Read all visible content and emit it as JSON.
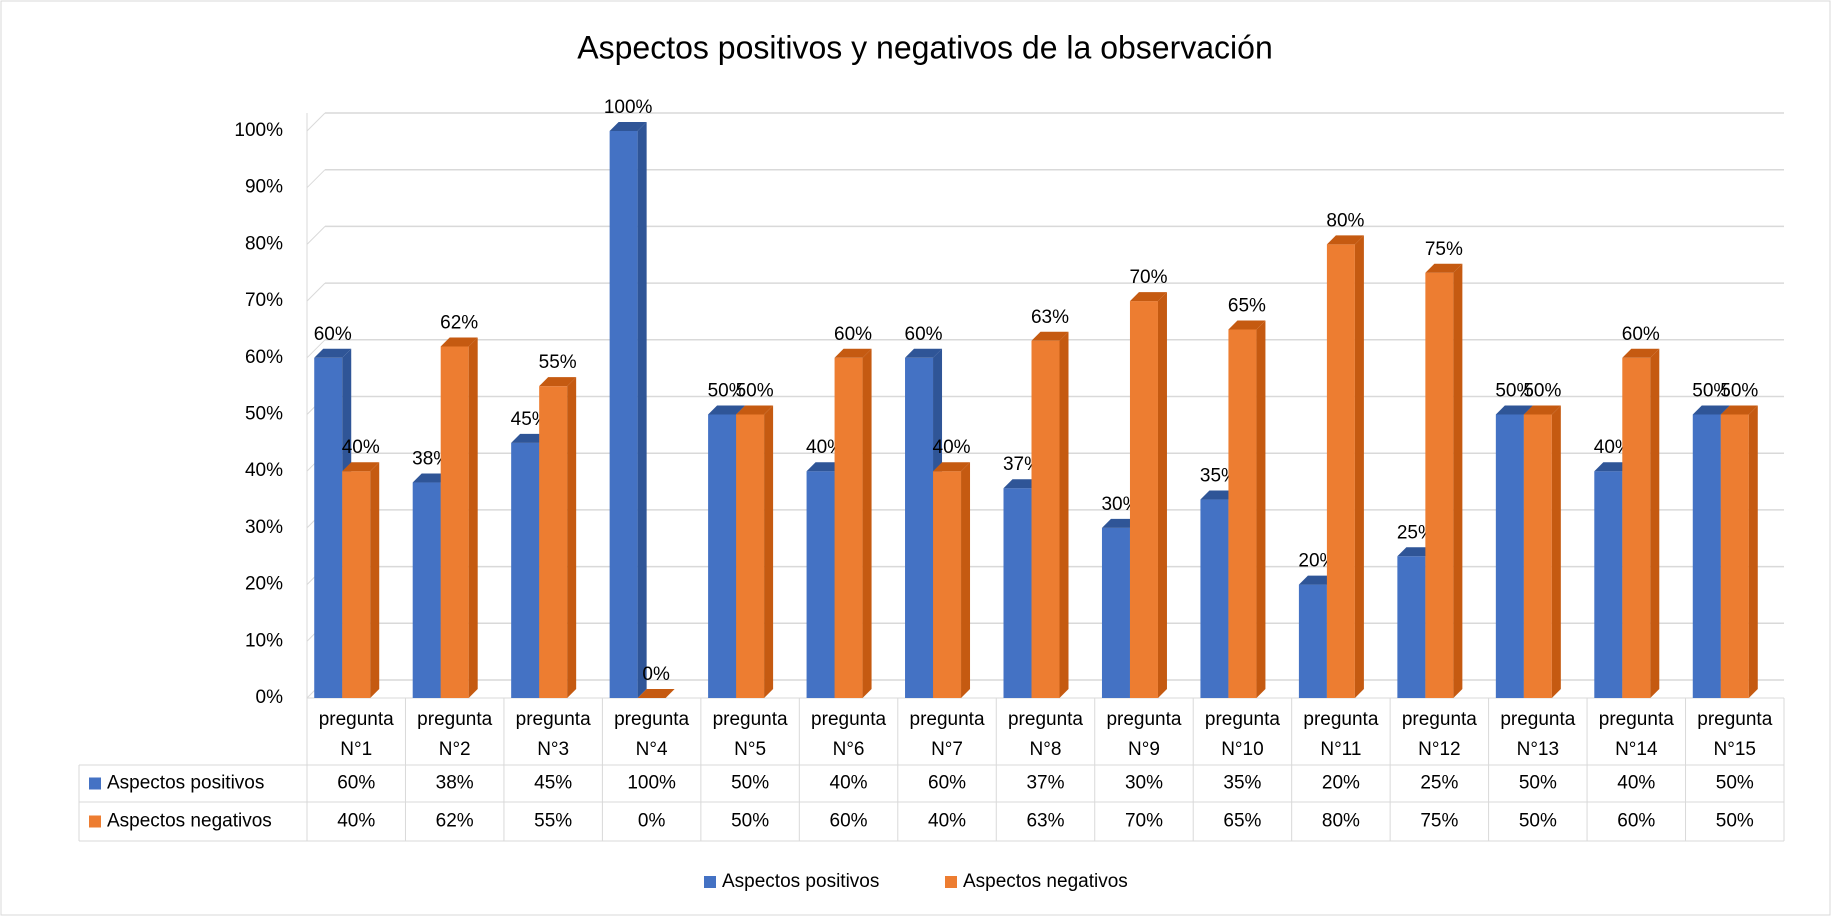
{
  "chart_data": {
    "type": "bar3d",
    "title": "Aspectos positivos y negativos de la observación",
    "categories": [
      "pregunta N°1",
      "pregunta N°2",
      "pregunta N°3",
      "pregunta N°4",
      "pregunta N°5",
      "pregunta N°6",
      "pregunta N°7",
      "pregunta N°8",
      "pregunta N°9",
      "pregunta N°10",
      "pregunta N°11",
      "pregunta N°12",
      "pregunta N°13",
      "pregunta N°14",
      "pregunta N°15"
    ],
    "series": [
      {
        "name": "Aspectos positivos",
        "color": "#4472c4",
        "side": "#2f5597",
        "values": [
          60,
          38,
          45,
          100,
          50,
          40,
          60,
          37,
          30,
          35,
          20,
          25,
          50,
          40,
          50
        ],
        "value_labels": [
          "60%",
          "38%",
          "45%",
          "100%",
          "50%",
          "40%",
          "60%",
          "37%",
          "30%",
          "35%",
          "20%",
          "25%",
          "50%",
          "40%",
          "50%"
        ]
      },
      {
        "name": "Aspectos negativos",
        "color": "#ed7d31",
        "side": "#c55a11",
        "values": [
          40,
          62,
          55,
          0,
          50,
          60,
          40,
          63,
          70,
          65,
          80,
          75,
          50,
          60,
          50
        ],
        "value_labels": [
          "40%",
          "62%",
          "55%",
          "0%",
          "50%",
          "60%",
          "40%",
          "63%",
          "70%",
          "65%",
          "80%",
          "75%",
          "50%",
          "60%",
          "50%"
        ]
      }
    ],
    "ylim": [
      0,
      100
    ],
    "yticks": [
      {
        "value": 0,
        "label": "0%"
      },
      {
        "value": 10,
        "label": "10%"
      },
      {
        "value": 20,
        "label": "20%"
      },
      {
        "value": 30,
        "label": "30%"
      },
      {
        "value": 40,
        "label": "40%"
      },
      {
        "value": 50,
        "label": "50%"
      },
      {
        "value": 60,
        "label": "60%"
      },
      {
        "value": 70,
        "label": "70%"
      },
      {
        "value": 80,
        "label": "80%"
      },
      {
        "value": 90,
        "label": "90%"
      },
      {
        "value": 100,
        "label": "100%"
      }
    ],
    "grid": true,
    "data_table": true,
    "legend": "bottom"
  }
}
